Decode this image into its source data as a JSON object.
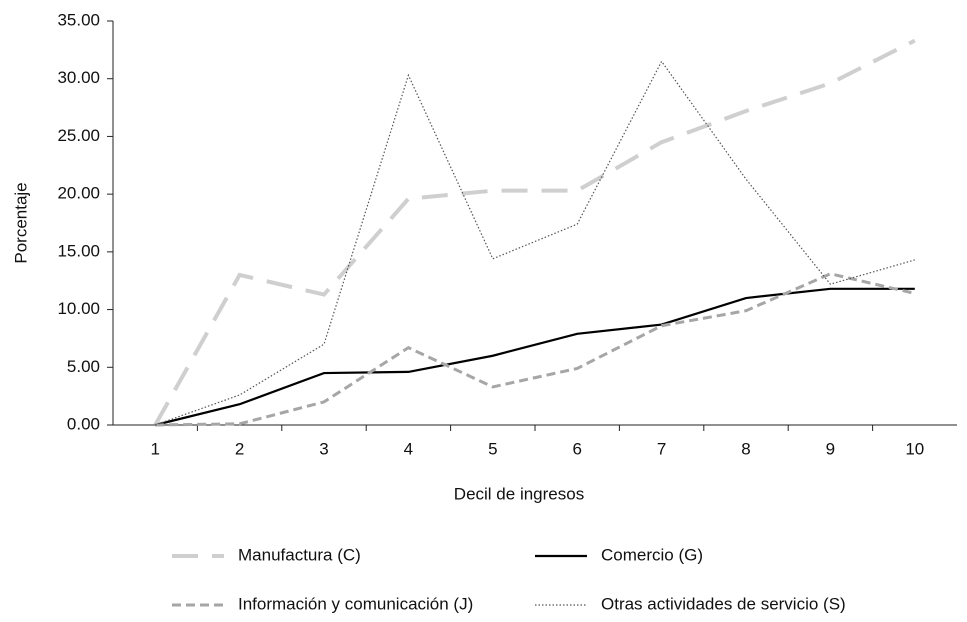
{
  "chart_data": {
    "type": "line",
    "x_label": "Decil de ingresos",
    "y_label": "Porcentaje",
    "categories": [
      "1",
      "2",
      "3",
      "4",
      "5",
      "6",
      "7",
      "8",
      "9",
      "10"
    ],
    "ylim": [
      0,
      35
    ],
    "yticks": [
      {
        "value": 0,
        "label": "0.00"
      },
      {
        "value": 5,
        "label": "5.00"
      },
      {
        "value": 10,
        "label": "10.00"
      },
      {
        "value": 15,
        "label": "15.00"
      },
      {
        "value": 20,
        "label": "20.00"
      },
      {
        "value": 25,
        "label": "25.00"
      },
      {
        "value": 30,
        "label": "30.00"
      },
      {
        "value": 35,
        "label": "35.00"
      }
    ],
    "series": [
      {
        "name": "Manufactura (C)",
        "color": "#cfcfcf",
        "values": [
          0,
          13.0,
          11.3,
          19.6,
          20.3,
          20.3,
          24.5,
          27.2,
          29.6,
          33.3
        ]
      },
      {
        "name": "Comercio (G)",
        "color": "#000000",
        "values": [
          0,
          1.8,
          4.5,
          4.6,
          6.0,
          7.9,
          8.7,
          11.0,
          11.8,
          11.8
        ]
      },
      {
        "name": "Información y comunicación (J)",
        "color": "#a6a6a6",
        "values": [
          0,
          0.1,
          2.0,
          6.7,
          3.3,
          4.9,
          8.6,
          9.9,
          13.1,
          11.4
        ]
      },
      {
        "name": "Otras actividades de servicio (S)",
        "color": "#555555",
        "values": [
          0,
          2.6,
          7.0,
          30.3,
          14.4,
          17.4,
          31.5,
          21.3,
          12.2,
          14.3
        ]
      }
    ]
  }
}
